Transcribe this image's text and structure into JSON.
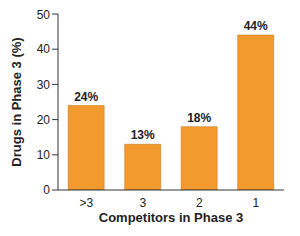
{
  "chart_data": {
    "type": "bar",
    "categories": [
      ">3",
      "3",
      "2",
      "1"
    ],
    "values": [
      24,
      13,
      18,
      44
    ],
    "value_labels": [
      "24%",
      "13%",
      "18%",
      "44%"
    ],
    "color": "#f39a2e",
    "x_label": "Competitors in Phase 3",
    "y_label": "Drugs in Phase 3 (%)",
    "ylim": [
      0,
      50
    ],
    "yticks": [
      0,
      10,
      20,
      30,
      40,
      50
    ],
    "grid": false,
    "data_labels": true
  }
}
